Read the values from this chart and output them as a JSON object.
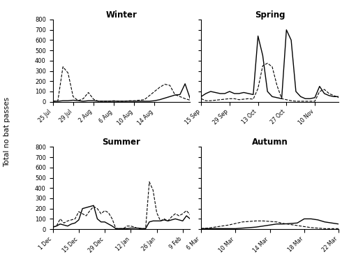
{
  "winter": {
    "title": "Winter",
    "rural_dashed": [
      5,
      10,
      340,
      280,
      50,
      10,
      30,
      90,
      25,
      5,
      5,
      5,
      10,
      5,
      5,
      10,
      10,
      15,
      20,
      60,
      100,
      140,
      170,
      160,
      70,
      50,
      30,
      15
    ],
    "urban_solid": [
      5,
      5,
      10,
      10,
      15,
      10,
      5,
      10,
      10,
      5,
      5,
      5,
      5,
      5,
      5,
      5,
      5,
      5,
      5,
      5,
      10,
      20,
      35,
      50,
      65,
      70,
      175,
      30
    ],
    "xtick_labels": [
      "25 Jul",
      "29 Jul",
      "2 Aug",
      "6 Aug",
      "10 Aug",
      "14 Aug"
    ],
    "xtick_positions": [
      0,
      4,
      8,
      12,
      16,
      20
    ]
  },
  "spring": {
    "title": "Spring",
    "rural_dashed": [
      30,
      10,
      10,
      15,
      20,
      25,
      30,
      30,
      20,
      25,
      30,
      25,
      130,
      350,
      375,
      340,
      160,
      30,
      20,
      10,
      5,
      5,
      5,
      5,
      5,
      100,
      120,
      80,
      60,
      40
    ],
    "urban_solid": [
      50,
      80,
      100,
      90,
      80,
      80,
      100,
      80,
      80,
      90,
      80,
      70,
      640,
      450,
      100,
      50,
      40,
      30,
      700,
      600,
      100,
      50,
      30,
      30,
      40,
      150,
      80,
      60,
      50,
      50
    ],
    "xtick_labels": [
      "15 Sep",
      "29 Sep",
      "13 Oct",
      "27 Oct",
      "10 Nov"
    ],
    "xtick_positions": [
      0,
      6,
      12,
      18,
      24
    ]
  },
  "summer": {
    "title": "Summer",
    "rural_dashed": [
      20,
      30,
      100,
      60,
      80,
      90,
      100,
      170,
      150,
      130,
      180,
      220,
      200,
      150,
      180,
      160,
      100,
      5,
      5,
      5,
      30,
      30,
      20,
      5,
      5,
      5,
      460,
      380,
      160,
      80,
      100,
      80,
      120,
      150,
      130,
      150,
      180,
      140
    ],
    "urban_solid": [
      20,
      30,
      50,
      40,
      30,
      50,
      60,
      90,
      200,
      210,
      220,
      230,
      100,
      70,
      70,
      50,
      30,
      5,
      5,
      5,
      5,
      10,
      10,
      10,
      5,
      5,
      70,
      80,
      80,
      80,
      90,
      80,
      90,
      100,
      90,
      80,
      130,
      100
    ],
    "xtick_labels": [
      "1 Dec",
      "15 Dec",
      "29 Dec",
      "12 Jan",
      "26 Jan",
      "9 Feb"
    ],
    "xtick_positions": [
      0,
      7,
      14,
      21,
      28,
      35
    ]
  },
  "autumn": {
    "title": "Autumn",
    "rural_dashed": [
      5,
      10,
      20,
      30,
      40,
      55,
      70,
      75,
      80,
      80,
      75,
      70,
      55,
      45,
      35,
      25,
      15,
      10,
      5,
      5,
      5
    ],
    "urban_solid": [
      5,
      5,
      5,
      5,
      5,
      5,
      10,
      15,
      20,
      30,
      40,
      50,
      50,
      55,
      60,
      100,
      100,
      90,
      70,
      60,
      50
    ],
    "xtick_labels": [
      "6 Mar",
      "10 Mar",
      "14 Mar",
      "18 Mar",
      "22 Mar"
    ],
    "xtick_positions": [
      0,
      5,
      10,
      15,
      20
    ]
  },
  "ylim": [
    0,
    800
  ],
  "yticks": [
    0,
    100,
    200,
    300,
    400,
    500,
    600,
    700,
    800
  ],
  "ylabel": "Total no bat passes",
  "background_color": "white"
}
